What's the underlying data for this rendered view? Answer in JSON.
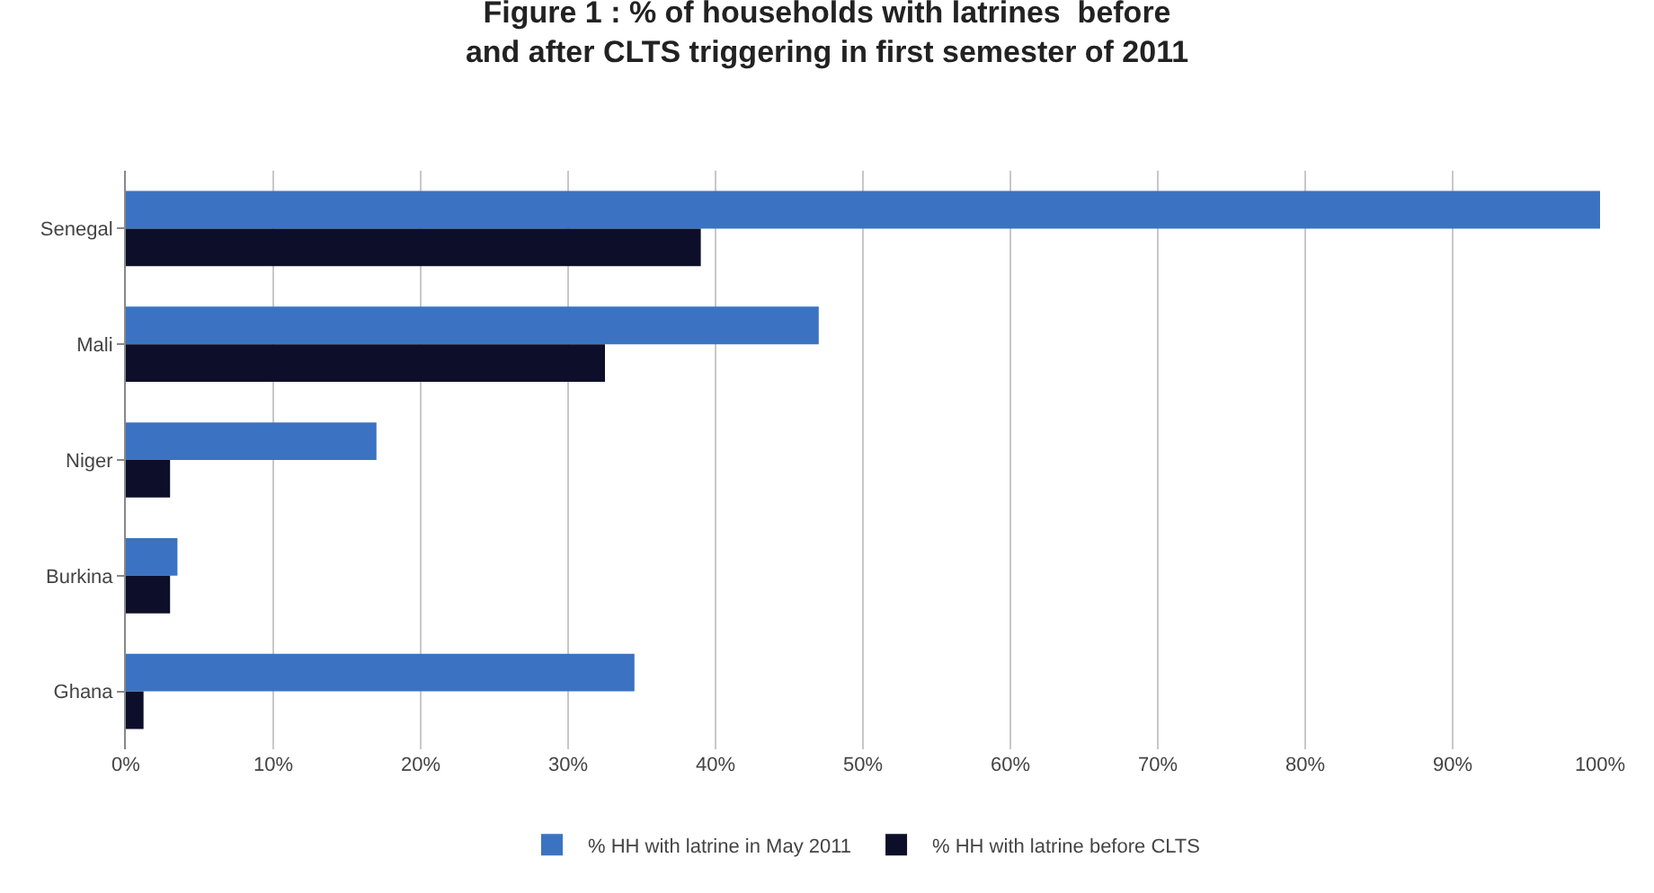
{
  "chart_data": {
    "type": "bar",
    "orientation": "horizontal",
    "title": "Figure 1 : % of households with latrines  before and after CLTS triggering in first semester of 2011",
    "categories": [
      "Senegal",
      "Mali",
      "Niger",
      "Burkina",
      "Ghana"
    ],
    "series": [
      {
        "name": "% HH with latrine in May 2011",
        "color": "#3b73c2",
        "values": [
          100,
          47,
          17,
          3.5,
          34.5
        ]
      },
      {
        "name": "% HH with latrine before CLTS",
        "color": "#0d0f2a",
        "values": [
          39,
          32.5,
          3,
          3,
          1.2
        ]
      }
    ],
    "xlim": [
      0,
      100
    ],
    "xticks": [
      {
        "value": 0,
        "label": "0%"
      },
      {
        "value": 10,
        "label": "10%"
      },
      {
        "value": 20,
        "label": "20%"
      },
      {
        "value": 30,
        "label": "30%"
      },
      {
        "value": 40,
        "label": "40%"
      },
      {
        "value": 50,
        "label": "50%"
      },
      {
        "value": 60,
        "label": "60%"
      },
      {
        "value": 70,
        "label": "70%"
      },
      {
        "value": 80,
        "label": "80%"
      },
      {
        "value": 90,
        "label": "90%"
      },
      {
        "value": 100,
        "label": "100%"
      }
    ],
    "grid": "x",
    "legend": "bottom"
  }
}
